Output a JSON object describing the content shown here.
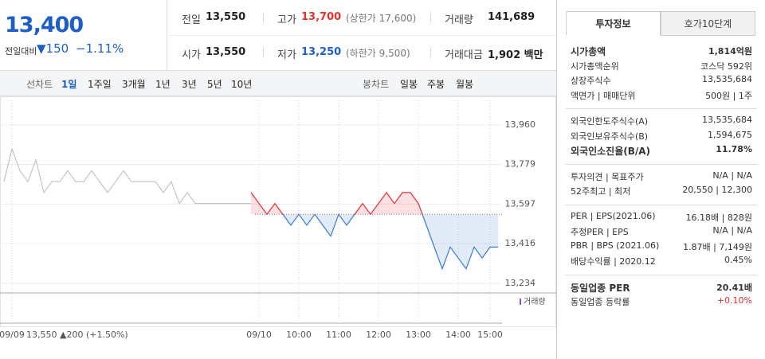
{
  "quote": {
    "price": "13,400",
    "change_label": "전일대비",
    "change": "▼150",
    "change_pct": "−1.11%"
  },
  "summary": [
    {
      "label": "전일",
      "value": "13,550"
    },
    {
      "label": "고가",
      "value": "13,700",
      "note": "(상한가 17,600)",
      "color": "#e5322d"
    },
    {
      "label": "거래량",
      "value": "141,689"
    },
    {
      "label": "시가",
      "value": "13,550"
    },
    {
      "label": "저가",
      "value": "13,250",
      "note": "(하한가 9,500)",
      "color": "#1f5fc4"
    },
    {
      "label": "거래대금",
      "value": "1,902 백만"
    }
  ],
  "line_tabs": {
    "label": "선차트",
    "items": [
      "1일",
      "1주일",
      "3개월",
      "1년",
      "3년",
      "5년",
      "10년"
    ]
  },
  "candle_tabs": {
    "label": "봉차트",
    "items": [
      "일봉",
      "주봉",
      "월봉"
    ]
  },
  "chart_data": {
    "type": "line",
    "categories": [
      null,
      "09/09",
      null,
      null,
      null,
      null,
      null,
      null,
      null,
      null,
      null,
      null,
      null,
      null,
      null,
      null,
      null,
      null,
      null,
      null,
      null,
      null,
      null,
      null,
      null,
      null,
      null,
      null,
      null,
      null,
      null,
      null,
      "09/10",
      null,
      null,
      null,
      null,
      "10:00",
      null,
      null,
      null,
      null,
      "11:00",
      null,
      null,
      null,
      null,
      "12:00",
      null,
      null,
      null,
      null,
      "13:00",
      null,
      null,
      null,
      null,
      "14:00",
      null,
      null,
      null,
      "15:00",
      null
    ],
    "series": [
      {
        "color": "#c4c4c4",
        "values": [
          13700,
          13850,
          13750,
          13700,
          13800,
          13650,
          13700,
          13700,
          13750,
          13700,
          13700,
          13750,
          13700,
          13650,
          13700,
          13750,
          13700,
          13700,
          13700,
          13700,
          13650,
          13700,
          13600,
          13650,
          13600,
          13600,
          13600,
          13600,
          13600,
          13600,
          13600,
          13600,
          null,
          null,
          null,
          null,
          null,
          null,
          null,
          null,
          null,
          null,
          null,
          null,
          null,
          null,
          null,
          null,
          null,
          null,
          null,
          null,
          null,
          null,
          null,
          null,
          null,
          null,
          null,
          null,
          null,
          null,
          null
        ]
      },
      {
        "color_up": "#e8303b",
        "color_down": "#3a7bd5",
        "values": [
          null,
          null,
          null,
          null,
          null,
          null,
          null,
          null,
          null,
          null,
          null,
          null,
          null,
          null,
          null,
          null,
          null,
          null,
          null,
          null,
          null,
          null,
          null,
          null,
          null,
          null,
          null,
          null,
          null,
          null,
          null,
          13650,
          13600,
          13550,
          13600,
          13550,
          13500,
          13550,
          13500,
          13550,
          13500,
          13450,
          13550,
          13500,
          13550,
          13600,
          13550,
          13600,
          13650,
          13600,
          13650,
          13650,
          13600,
          13500,
          13400,
          13300,
          13400,
          13350,
          13300,
          13400,
          13350,
          13400,
          13400
        ]
      }
    ],
    "reference": 13550,
    "ylim": [
      13197,
      14073
    ],
    "yticks": [
      {
        "value": 13960,
        "label": "13,960"
      },
      {
        "value": 13779,
        "label": "13,779"
      },
      {
        "value": 13597,
        "label": "13,597"
      },
      {
        "value": 13416,
        "label": "13,416"
      },
      {
        "value": 13234,
        "label": "13,234"
      }
    ],
    "volume_label": "거래량",
    "prev_note": "13,550 ▲200 (+1.50%)"
  },
  "info_tabs": [
    "투자정보",
    "호가10단계"
  ],
  "info": [
    [
      {
        "label": "시가총액",
        "value": "1,814억원",
        "bold": true
      },
      {
        "label": "시가총액순위",
        "value": "코스닥 592위"
      },
      {
        "label": "상장주식수",
        "value": "13,535,684"
      },
      {
        "label": "액면가 | 매매단위",
        "value": "500원 | 1주"
      }
    ],
    [
      {
        "label": "외국인한도주식수(A)",
        "value": "13,535,684"
      },
      {
        "label": "외국인보유주식수(B)",
        "value": "1,594,675"
      },
      {
        "label": "외국인소진율(B/A)",
        "value": "11.78%",
        "bold": true
      }
    ],
    [
      {
        "label": "투자의견 | 목표주가",
        "value": "N/A | N/A"
      },
      {
        "label": "52주최고 | 최저",
        "value": "20,550 | 12,300"
      }
    ],
    [
      {
        "label": "PER | EPS(2021.06)",
        "value": "16.18배 | 828원"
      },
      {
        "label": "추정PER | EPS",
        "value": "N/A | N/A"
      },
      {
        "label": "PBR | BPS (2021.06)",
        "value": "1.87배 | 7,149원"
      },
      {
        "label": "배당수익률 | 2020.12",
        "value": "0.45%"
      }
    ],
    [
      {
        "label": "동일업종 PER",
        "value": "20.41배",
        "bold": true
      },
      {
        "label": "동일업종 등락률",
        "value": "+0.10%",
        "color": "#e5322d"
      }
    ]
  ]
}
